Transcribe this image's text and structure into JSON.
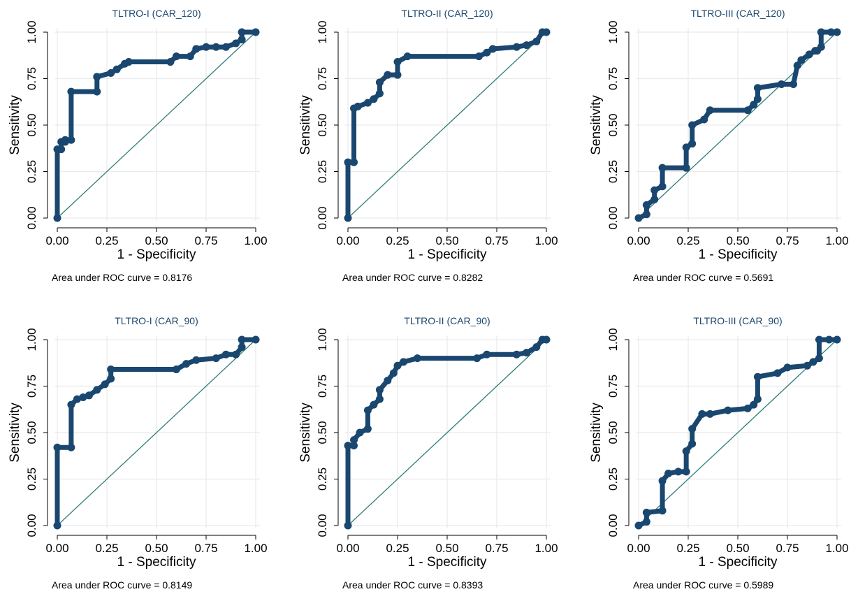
{
  "chart_data": [
    {
      "type": "line",
      "title": "TLTRO-I (CAR_120)",
      "xlabel": "1 - Specificity",
      "ylabel": "Sensitivity",
      "xlim": [
        0,
        1
      ],
      "ylim": [
        0,
        1
      ],
      "ticks": [
        "0.00",
        "0.25",
        "0.50",
        "0.75",
        "1.00"
      ],
      "grid": true,
      "auc_text": "Area under ROC curve = 0.8176",
      "series": [
        {
          "x": [
            0,
            0,
            0.02,
            0.02,
            0.04,
            0.04,
            0.07,
            0.07,
            0.2,
            0.2,
            0.27,
            0.3,
            0.34,
            0.36,
            0.57,
            0.6,
            0.67,
            0.7,
            0.75,
            0.8,
            0.85,
            0.9,
            0.93,
            0.93,
            1.0
          ],
          "y": [
            0,
            0.37,
            0.37,
            0.41,
            0.41,
            0.42,
            0.42,
            0.68,
            0.68,
            0.76,
            0.78,
            0.8,
            0.83,
            0.84,
            0.84,
            0.87,
            0.87,
            0.91,
            0.92,
            0.92,
            0.92,
            0.94,
            0.96,
            1.0,
            1.0
          ]
        }
      ]
    },
    {
      "type": "line",
      "title": "TLTRO-II (CAR_120)",
      "xlabel": "1 - Specificity",
      "ylabel": "Sensitivity",
      "xlim": [
        0,
        1
      ],
      "ylim": [
        0,
        1
      ],
      "ticks": [
        "0.00",
        "0.25",
        "0.50",
        "0.75",
        "1.00"
      ],
      "grid": true,
      "auc_text": "Area under ROC curve = 0.8282",
      "series": [
        {
          "x": [
            0,
            0,
            0.03,
            0.03,
            0.05,
            0.1,
            0.13,
            0.16,
            0.16,
            0.2,
            0.25,
            0.25,
            0.3,
            0.66,
            0.7,
            0.73,
            0.85,
            0.9,
            0.95,
            0.98,
            1.0
          ],
          "y": [
            0,
            0.3,
            0.3,
            0.59,
            0.6,
            0.62,
            0.64,
            0.67,
            0.73,
            0.77,
            0.77,
            0.84,
            0.87,
            0.87,
            0.89,
            0.91,
            0.92,
            0.93,
            0.95,
            1.0,
            1.0
          ]
        }
      ]
    },
    {
      "type": "line",
      "title": "TLTRO-III (CAR_120)",
      "xlabel": "1 - Specificity",
      "ylabel": "Sensitivity",
      "xlim": [
        0,
        1
      ],
      "ylim": [
        0,
        1
      ],
      "ticks": [
        "0.00",
        "0.25",
        "0.50",
        "0.75",
        "1.00"
      ],
      "grid": true,
      "auc_text": "Area under ROC curve = 0.5691",
      "series": [
        {
          "x": [
            0,
            0.04,
            0.04,
            0.08,
            0.08,
            0.12,
            0.12,
            0.24,
            0.24,
            0.27,
            0.27,
            0.33,
            0.36,
            0.55,
            0.58,
            0.6,
            0.6,
            0.72,
            0.78,
            0.8,
            0.82,
            0.86,
            0.89,
            0.9,
            0.92,
            0.92,
            0.97,
            1.0
          ],
          "y": [
            0,
            0.02,
            0.07,
            0.1,
            0.15,
            0.17,
            0.27,
            0.27,
            0.38,
            0.4,
            0.5,
            0.53,
            0.58,
            0.58,
            0.61,
            0.64,
            0.7,
            0.72,
            0.72,
            0.82,
            0.85,
            0.88,
            0.9,
            0.9,
            0.92,
            1.0,
            1.0,
            1.0
          ]
        }
      ]
    },
    {
      "type": "line",
      "title": "TLTRO-I (CAR_90)",
      "xlabel": "1 - Specificity",
      "ylabel": "Sensitivity",
      "xlim": [
        0,
        1
      ],
      "ylim": [
        0,
        1
      ],
      "ticks": [
        "0.00",
        "0.25",
        "0.50",
        "0.75",
        "1.00"
      ],
      "grid": true,
      "auc_text": "Area under ROC curve = 0.8149",
      "series": [
        {
          "x": [
            0,
            0,
            0.07,
            0.07,
            0.1,
            0.13,
            0.16,
            0.2,
            0.24,
            0.27,
            0.27,
            0.6,
            0.65,
            0.7,
            0.8,
            0.85,
            0.9,
            0.93,
            0.93,
            1.0
          ],
          "y": [
            0,
            0.42,
            0.42,
            0.65,
            0.68,
            0.69,
            0.7,
            0.73,
            0.76,
            0.79,
            0.84,
            0.84,
            0.87,
            0.89,
            0.9,
            0.92,
            0.92,
            0.96,
            1.0,
            1.0
          ]
        }
      ]
    },
    {
      "type": "line",
      "title": "TLTRO-II (CAR_90)",
      "xlabel": "1 - Specificity",
      "ylabel": "Sensitivity",
      "xlim": [
        0,
        1
      ],
      "ylim": [
        0,
        1
      ],
      "ticks": [
        "0.00",
        "0.25",
        "0.50",
        "0.75",
        "1.00"
      ],
      "grid": true,
      "auc_text": "Area under ROC curve = 0.8393",
      "series": [
        {
          "x": [
            0,
            0,
            0.03,
            0.03,
            0.06,
            0.1,
            0.1,
            0.13,
            0.16,
            0.16,
            0.2,
            0.23,
            0.25,
            0.28,
            0.35,
            0.65,
            0.7,
            0.85,
            0.9,
            0.95,
            0.98,
            1.0
          ],
          "y": [
            0,
            0.43,
            0.43,
            0.46,
            0.5,
            0.52,
            0.62,
            0.65,
            0.68,
            0.73,
            0.78,
            0.82,
            0.86,
            0.88,
            0.9,
            0.9,
            0.92,
            0.92,
            0.93,
            0.96,
            1.0,
            1.0
          ]
        }
      ]
    },
    {
      "type": "line",
      "title": "TLTRO-III (CAR_90)",
      "xlabel": "1 - Specificity",
      "ylabel": "Sensitivity",
      "xlim": [
        0,
        1
      ],
      "ylim": [
        0,
        1
      ],
      "ticks": [
        "0.00",
        "0.25",
        "0.50",
        "0.75",
        "1.00"
      ],
      "grid": true,
      "auc_text": "Area under ROC curve = 0.5989",
      "series": [
        {
          "x": [
            0,
            0.04,
            0.04,
            0.12,
            0.12,
            0.15,
            0.2,
            0.24,
            0.24,
            0.27,
            0.27,
            0.32,
            0.36,
            0.45,
            0.55,
            0.58,
            0.6,
            0.6,
            0.7,
            0.75,
            0.85,
            0.88,
            0.91,
            0.91,
            0.96,
            1.0
          ],
          "y": [
            0,
            0.02,
            0.07,
            0.08,
            0.24,
            0.28,
            0.29,
            0.29,
            0.4,
            0.44,
            0.52,
            0.6,
            0.6,
            0.62,
            0.63,
            0.65,
            0.68,
            0.8,
            0.82,
            0.85,
            0.86,
            0.88,
            0.9,
            1.0,
            1.0,
            1.0
          ]
        }
      ]
    }
  ],
  "colors": {
    "curve": "#1a476f",
    "reference_line": "#2e7d7a",
    "grid": "#eaeaea",
    "axis": "#000000"
  }
}
